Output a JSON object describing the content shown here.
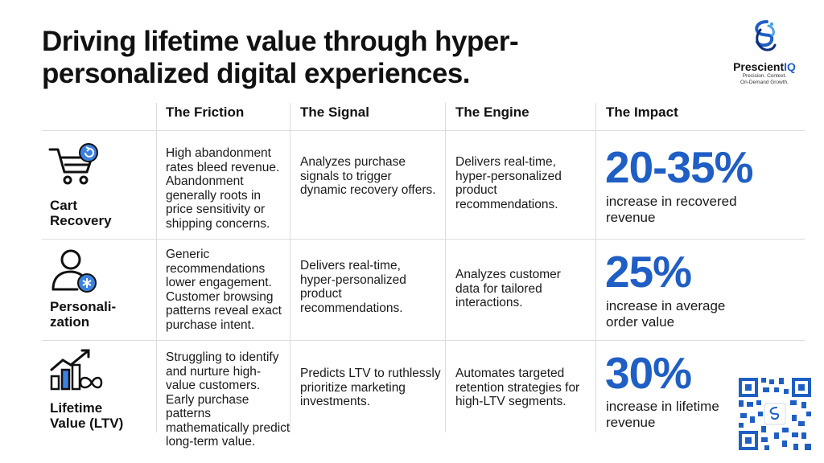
{
  "title": "Driving lifetime value through hyper-personalized digital experiences.",
  "logo": {
    "name_part1": "Prescient",
    "name_part2": "IQ",
    "tagline_line1": "Precision. Context.",
    "tagline_line2": "On-Demand Growth."
  },
  "columns": [
    "The Friction",
    "The Signal",
    "The Engine",
    "The Impact"
  ],
  "rows": [
    {
      "label_line1": "Cart",
      "label_line2": "Recovery",
      "friction": "High abandonment rates bleed revenue. Abandonment generally roots in price sensitivity or shipping concerns.",
      "signal": "Analyzes purchase signals to trigger dynamic recovery offers.",
      "engine": "Delivers real-time, hyper-personalized product recommendations.",
      "impact_value": "20-35%",
      "impact_text": "increase in recovered revenue"
    },
    {
      "label_line1": "Personali-",
      "label_line2": "zation",
      "friction": "Generic recommendations lower engagement. Customer browsing patterns reveal exact purchase intent.",
      "signal": "Delivers real-time, hyper-personalized product recommendations.",
      "engine": "Analyzes customer data for tailored interactions.",
      "impact_value": "25%",
      "impact_text": "increase in average order value"
    },
    {
      "label_line1": "Lifetime",
      "label_line2": "Value (LTV)",
      "friction": "Struggling to identify and nurture high-value customers. Early purchase patterns mathematically predict long-term value.",
      "signal": "Predicts LTV to ruthlessly prioritize marketing investments.",
      "engine": "Automates targeted retention strategies for high-LTV segments.",
      "impact_value": "30%",
      "impact_text": "increase in lifetime revenue"
    }
  ],
  "colors": {
    "accent": "#1f5ec4",
    "text": "#111111"
  }
}
